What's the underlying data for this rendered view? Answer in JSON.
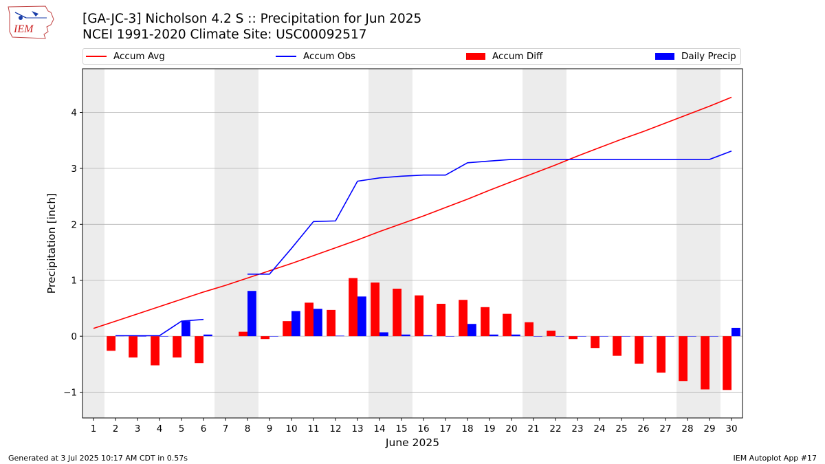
{
  "header": {
    "title_line1": "[GA-JC-3] Nicholson 4.2 S :: Precipitation for Jun 2025",
    "title_line2": "NCEI 1991-2020 Climate Site: USC00092517",
    "logo_text": "IEM"
  },
  "legend": {
    "items": [
      {
        "label": "Accum Avg",
        "color": "#ff0000",
        "kind": "line"
      },
      {
        "label": "Accum Obs",
        "color": "#0000ff",
        "kind": "line"
      },
      {
        "label": "Accum Diff",
        "color": "#ff0000",
        "kind": "bar"
      },
      {
        "label": "Daily Precip",
        "color": "#0000ff",
        "kind": "bar"
      }
    ]
  },
  "footer": {
    "left": "Generated at 3 Jul 2025 10:17 AM CDT in 0.57s",
    "right": "IEM Autoplot App #17"
  },
  "chart_data": {
    "type": "bar",
    "xlabel": "June 2025",
    "ylabel": "Precipitation [inch]",
    "x": [
      1,
      2,
      3,
      4,
      5,
      6,
      7,
      8,
      9,
      10,
      11,
      12,
      13,
      14,
      15,
      16,
      17,
      18,
      19,
      20,
      21,
      22,
      23,
      24,
      25,
      26,
      27,
      28,
      29,
      30
    ],
    "xlim": [
      0.5,
      30.5
    ],
    "ylim": [
      -1.46,
      4.78
    ],
    "yticks": [
      -1,
      0,
      1,
      2,
      3,
      4
    ],
    "ytick_labels": [
      "−1",
      "0",
      "1",
      "2",
      "3",
      "4"
    ],
    "grid": "horizontal",
    "weekend_shading": [
      [
        0.5,
        1.5
      ],
      [
        6.5,
        8.5
      ],
      [
        13.5,
        15.5
      ],
      [
        20.5,
        22.5
      ],
      [
        27.5,
        29.5
      ]
    ],
    "series": [
      {
        "name": "Accum Avg",
        "kind": "line",
        "color": "#ff0000",
        "values": [
          0.14,
          0.27,
          0.4,
          0.53,
          0.66,
          0.79,
          0.91,
          1.04,
          1.17,
          1.3,
          1.44,
          1.58,
          1.72,
          1.87,
          2.01,
          2.15,
          2.3,
          2.45,
          2.61,
          2.76,
          2.91,
          3.06,
          3.22,
          3.37,
          3.52,
          3.66,
          3.81,
          3.96,
          4.11,
          4.27
        ]
      },
      {
        "name": "Accum Obs",
        "kind": "line",
        "color": "#0000ff",
        "values": [
          null,
          0.01,
          0.01,
          0.01,
          0.27,
          0.3,
          null,
          1.11,
          1.11,
          1.57,
          2.05,
          2.06,
          2.77,
          2.83,
          2.86,
          2.88,
          2.88,
          3.1,
          3.13,
          3.16,
          3.16,
          3.16,
          3.16,
          3.16,
          3.16,
          3.16,
          3.16,
          3.16,
          3.16,
          3.31
        ]
      },
      {
        "name": "Accum Diff",
        "kind": "bar",
        "color": "#ff0000",
        "values": [
          null,
          -0.26,
          -0.38,
          -0.52,
          -0.38,
          -0.48,
          null,
          0.08,
          -0.05,
          0.27,
          0.6,
          0.47,
          1.04,
          0.96,
          0.85,
          0.73,
          0.58,
          0.65,
          0.52,
          0.4,
          0.25,
          0.1,
          -0.05,
          -0.21,
          -0.35,
          -0.49,
          -0.65,
          -0.8,
          -0.95,
          -0.96
        ]
      },
      {
        "name": "Daily Precip",
        "kind": "bar",
        "color": "#0000ff",
        "values": [
          null,
          0.01,
          0.0,
          0.0,
          0.27,
          0.03,
          null,
          0.81,
          0.0,
          0.45,
          0.49,
          0.01,
          0.71,
          0.07,
          0.03,
          0.02,
          0.0,
          0.22,
          0.03,
          0.03,
          0.0,
          0.0,
          0.0,
          0.0,
          0.0,
          0.0,
          0.0,
          0.0,
          0.0,
          0.15
        ]
      }
    ]
  }
}
